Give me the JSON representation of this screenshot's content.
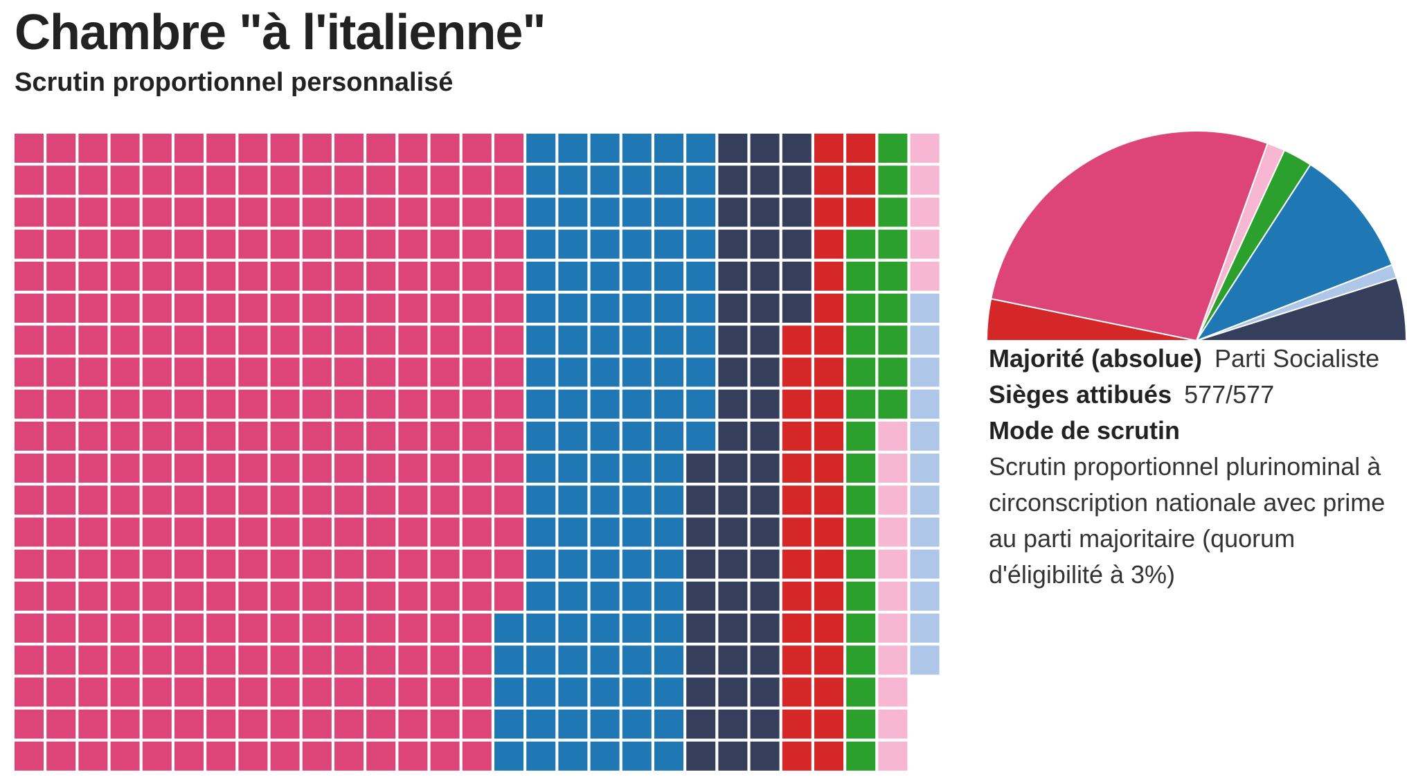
{
  "title": "Chambre \"à l'italienne\"",
  "subtitle": "Scrutin proportionnel personnalisé",
  "info": {
    "majority_label": "Majorité (absolue)",
    "majority_value": "Parti Socialiste",
    "seats_label": "Sièges attibués",
    "seats_value": "577/577",
    "mode_label": "Mode de scrutin",
    "mode_value": "Scrutin proportionnel plurinominal à circonscription nationale avec prime au parti majoritaire (quorum d'éligibilité à 3%)"
  },
  "chart_data": [
    {
      "type": "waffle",
      "rows": 20,
      "unit": "seat",
      "total": 577,
      "order": "column-major, top to bottom, left to right",
      "series": [
        {
          "color": "#dd4477",
          "value": 315
        },
        {
          "color": "#1f77b4",
          "value": 115
        },
        {
          "color": "#353f5b",
          "value": 56
        },
        {
          "color": "#d62728",
          "value": 37
        },
        {
          "color": "#2ca02c",
          "value": 26
        },
        {
          "color": "#f7b6d2",
          "value": 16
        },
        {
          "color": "#aec7e8",
          "value": 12
        }
      ]
    },
    {
      "type": "pie",
      "variant": "half-donut (hemicycle)",
      "total": 577,
      "series": [
        {
          "color": "#d62728",
          "value": 37
        },
        {
          "color": "#dd4477",
          "value": 315
        },
        {
          "color": "#f7b6d2",
          "value": 16
        },
        {
          "color": "#2ca02c",
          "value": 26
        },
        {
          "color": "#1f77b4",
          "value": 115
        },
        {
          "color": "#aec7e8",
          "value": 12
        },
        {
          "color": "#353f5b",
          "value": 56
        }
      ]
    }
  ]
}
